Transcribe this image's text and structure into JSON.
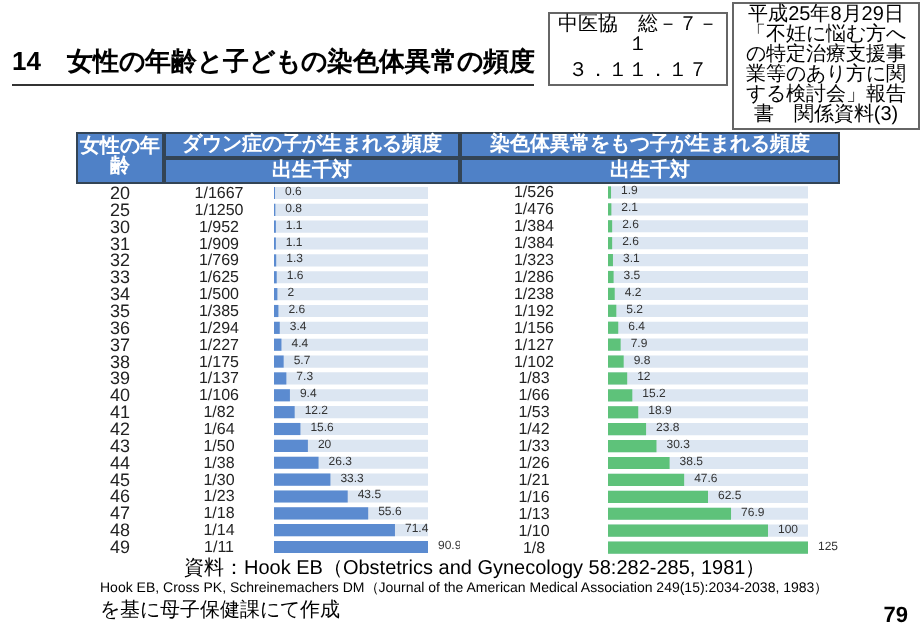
{
  "chart_data": [
    {
      "type": "bar",
      "orientation": "horizontal",
      "title": "14　女性の年齢と子どもの染色体異常の頻度",
      "ylabel": "女性の年齢",
      "subtitle": "ダウン症の子が生まれる頻度",
      "xlabel": "出生千対",
      "tick_labels": "y",
      "data_labels": true,
      "color": "#5b8bd0",
      "categories": [
        "20",
        "25",
        "30",
        "31",
        "32",
        "33",
        "34",
        "35",
        "36",
        "37",
        "38",
        "39",
        "40",
        "41",
        "42",
        "43",
        "44",
        "45",
        "46",
        "47",
        "48",
        "49"
      ],
      "values": [
        0.6,
        0.8,
        1.1,
        1.1,
        1.3,
        1.6,
        2.0,
        2.6,
        3.4,
        4.4,
        5.7,
        7.3,
        9.4,
        12.2,
        15.6,
        20.0,
        26.3,
        33.3,
        43.5,
        55.6,
        71.4,
        90.9
      ],
      "annotations": [
        "1/1667",
        "1/1250",
        "1/952",
        "1/909",
        "1/769",
        "1/625",
        "1/500",
        "1/385",
        "1/294",
        "1/227",
        "1/175",
        "1/137",
        "1/106",
        "1/82",
        "1/64",
        "1/50",
        "1/38",
        "1/30",
        "1/23",
        "1/18",
        "1/14",
        "1/11",
        "中医協　総－７－１",
        "３．１１．１７",
        "平成25年8月29日",
        "「不妊に悩む方への特定治療支援事業等のあり方に関する検討会」報告書　関係資料(3)",
        "資料：Hook EB（Obstetrics and Gynecology 58:282-285, 1981）",
        "Hook EB, Cross PK, Schreinemachers DM（Journal of the American Medical Association 249(15):2034-2038, 1983）",
        "を基に母子保健課にて作成",
        "79"
      ]
    },
    {
      "type": "bar",
      "orientation": "horizontal",
      "subtitle": "染色体異常をもつ子が生まれる頻度",
      "xlabel": "出生千対",
      "tick_labels": false,
      "data_labels": true,
      "color": "#5ec27a",
      "categories": [
        "20",
        "25",
        "30",
        "31",
        "32",
        "33",
        "34",
        "35",
        "36",
        "37",
        "38",
        "39",
        "40",
        "41",
        "42",
        "43",
        "44",
        "45",
        "46",
        "47",
        "48",
        "49"
      ],
      "values": [
        1.9,
        2.1,
        2.6,
        2.6,
        3.1,
        3.5,
        4.2,
        5.2,
        6.4,
        7.9,
        9.8,
        12.0,
        15.2,
        18.9,
        23.8,
        30.3,
        38.5,
        47.6,
        62.5,
        76.9,
        100.0,
        125.0
      ],
      "annotations": [
        "1/526",
        "1/476",
        "1/384",
        "1/384",
        "1/323",
        "1/286",
        "1/238",
        "1/192",
        "1/156",
        "1/127",
        "1/102",
        "1/83",
        "1/66",
        "1/53",
        "1/42",
        "1/33",
        "1/26",
        "1/21",
        "1/16",
        "1/13",
        "1/10",
        "1/8"
      ]
    }
  ]
}
